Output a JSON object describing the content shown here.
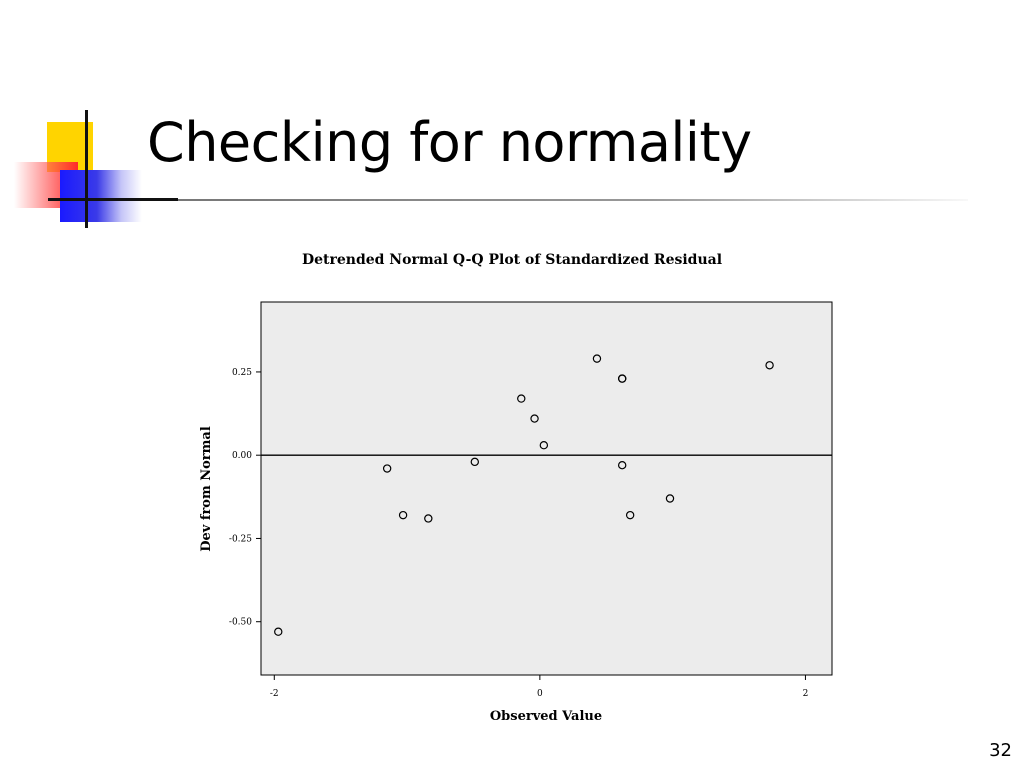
{
  "slide": {
    "title": "Checking for normality",
    "page_number": "32"
  },
  "chart_data": {
    "type": "scatter",
    "title": "Detrended Normal Q-Q Plot of Standardized Residual",
    "xlabel": "Observed Value",
    "ylabel": "Dev from Normal",
    "xlim": [
      -2.1,
      2.2
    ],
    "ylim": [
      -0.66,
      0.46
    ],
    "x_ticks": [
      -2,
      0,
      2
    ],
    "x_tick_labels": [
      "-2",
      "0",
      "2"
    ],
    "y_ticks": [
      0.25,
      0.0,
      -0.25,
      -0.5
    ],
    "y_tick_labels": [
      "0.25",
      "0.00",
      "-0.25",
      "-0.50"
    ],
    "reference_line_y": 0.0,
    "grid": false,
    "background": "#ececec",
    "marker": "hollow-circle",
    "points": [
      {
        "x": -1.97,
        "y": -0.53
      },
      {
        "x": -1.15,
        "y": -0.04
      },
      {
        "x": -1.03,
        "y": -0.18
      },
      {
        "x": -0.84,
        "y": -0.19
      },
      {
        "x": -0.49,
        "y": -0.02
      },
      {
        "x": -0.14,
        "y": 0.17
      },
      {
        "x": -0.04,
        "y": 0.11
      },
      {
        "x": 0.03,
        "y": 0.03
      },
      {
        "x": 0.43,
        "y": 0.29
      },
      {
        "x": 0.62,
        "y": 0.23
      },
      {
        "x": 0.62,
        "y": 0.23
      },
      {
        "x": 0.62,
        "y": -0.03
      },
      {
        "x": 0.68,
        "y": -0.18
      },
      {
        "x": 0.98,
        "y": -0.13
      },
      {
        "x": 1.73,
        "y": 0.27
      }
    ]
  }
}
